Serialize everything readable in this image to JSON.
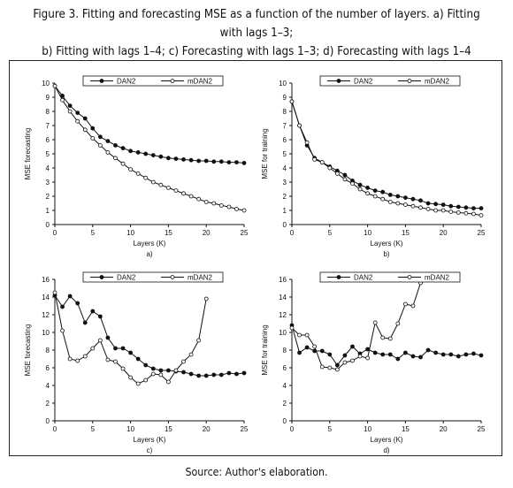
{
  "caption": {
    "line1": "Figure 3. Fitting and forecasting MSE as a function of the number of layers. a) Fitting with lags 1–3;",
    "line2": "b) Fitting with lags 1–4; c) Forecasting with lags 1–3; d) Forecasting with lags 1–4"
  },
  "source": "Source: Author's elaboration.",
  "chart_data": [
    {
      "type": "line",
      "panel_label": "a)",
      "xlabel": "Layers (K)",
      "ylabel": "MSE forecasting",
      "xlim": [
        0,
        25
      ],
      "ylim": [
        0,
        10
      ],
      "xticks": [
        0,
        5,
        10,
        15,
        20,
        25
      ],
      "yticks": [
        0,
        1,
        2,
        3,
        4,
        5,
        6,
        7,
        8,
        9,
        10
      ],
      "grid": false,
      "legend": "top",
      "x": [
        0,
        1,
        2,
        3,
        4,
        5,
        6,
        7,
        8,
        9,
        10,
        11,
        12,
        13,
        14,
        15,
        16,
        17,
        18,
        19,
        20,
        21,
        22,
        23,
        24,
        25
      ],
      "series": [
        {
          "name": "DAN2",
          "marker": "filled",
          "values": [
            9.8,
            9.1,
            8.4,
            7.9,
            7.5,
            6.8,
            6.2,
            5.9,
            5.6,
            5.4,
            5.2,
            5.1,
            5.0,
            4.9,
            4.8,
            4.7,
            4.65,
            4.6,
            4.55,
            4.5,
            4.5,
            4.45,
            4.45,
            4.4,
            4.4,
            4.35
          ]
        },
        {
          "name": "mDAN2",
          "marker": "open",
          "values": [
            9.8,
            8.8,
            8.0,
            7.3,
            6.7,
            6.1,
            5.6,
            5.1,
            4.7,
            4.3,
            3.9,
            3.6,
            3.3,
            3.0,
            2.8,
            2.6,
            2.4,
            2.2,
            2.0,
            1.8,
            1.6,
            1.5,
            1.35,
            1.25,
            1.1,
            1.0
          ]
        }
      ]
    },
    {
      "type": "line",
      "panel_label": "b)",
      "xlabel": "Layers (K)",
      "ylabel": "MSE for training",
      "xlim": [
        0,
        25
      ],
      "ylim": [
        0,
        10
      ],
      "xticks": [
        0,
        5,
        10,
        15,
        20,
        25
      ],
      "yticks": [
        0,
        1,
        2,
        3,
        4,
        5,
        6,
        7,
        8,
        9,
        10
      ],
      "grid": false,
      "legend": "top",
      "x": [
        0,
        1,
        2,
        3,
        4,
        5,
        6,
        7,
        8,
        9,
        10,
        11,
        12,
        13,
        14,
        15,
        16,
        17,
        18,
        19,
        20,
        21,
        22,
        23,
        24,
        25
      ],
      "series": [
        {
          "name": "DAN2",
          "marker": "filled",
          "values": [
            8.7,
            7.0,
            5.6,
            4.7,
            4.4,
            4.1,
            3.8,
            3.5,
            3.1,
            2.8,
            2.6,
            2.4,
            2.3,
            2.1,
            2.0,
            1.9,
            1.8,
            1.7,
            1.5,
            1.45,
            1.4,
            1.3,
            1.25,
            1.2,
            1.15,
            1.15
          ]
        },
        {
          "name": "mDAN2",
          "marker": "open",
          "values": [
            8.7,
            7.0,
            5.8,
            4.6,
            4.4,
            4.0,
            3.6,
            3.2,
            2.9,
            2.5,
            2.2,
            2.0,
            1.8,
            1.6,
            1.5,
            1.4,
            1.3,
            1.2,
            1.1,
            1.0,
            1.0,
            0.9,
            0.85,
            0.8,
            0.75,
            0.65
          ]
        }
      ]
    },
    {
      "type": "line",
      "panel_label": "c)",
      "xlabel": "Layers (K)",
      "ylabel": "MSE forecasting",
      "xlim": [
        0,
        25
      ],
      "ylim": [
        0,
        16
      ],
      "xticks": [
        0,
        5,
        10,
        15,
        20,
        25
      ],
      "yticks": [
        0,
        2,
        4,
        6,
        8,
        10,
        12,
        14,
        16
      ],
      "grid": false,
      "legend": "top",
      "x": [
        0,
        1,
        2,
        3,
        4,
        5,
        6,
        7,
        8,
        9,
        10,
        11,
        12,
        13,
        14,
        15,
        16,
        17,
        18,
        19,
        20,
        21,
        22,
        23,
        24,
        25
      ],
      "series": [
        {
          "name": "DAN2",
          "marker": "filled",
          "values": [
            14.2,
            12.9,
            14.1,
            13.3,
            11.1,
            12.4,
            11.8,
            9.4,
            8.2,
            8.2,
            7.7,
            7.0,
            6.3,
            5.9,
            5.7,
            5.7,
            5.6,
            5.5,
            5.3,
            5.1,
            5.1,
            5.2,
            5.2,
            5.4,
            5.3,
            5.4
          ]
        },
        {
          "name": "mDAN2",
          "marker": "open",
          "values": [
            14.5,
            10.2,
            7.0,
            6.8,
            7.3,
            8.2,
            9.1,
            6.9,
            6.7,
            5.9,
            4.9,
            4.2,
            4.6,
            5.3,
            5.2,
            4.4,
            5.7,
            6.7,
            7.5,
            9.1,
            13.8,
            null,
            null,
            null,
            null,
            null
          ]
        }
      ]
    },
    {
      "type": "line",
      "panel_label": "d)",
      "xlabel": "Layers (K)",
      "ylabel": "MSE for training",
      "xlim": [
        0,
        25
      ],
      "ylim": [
        0,
        16
      ],
      "xticks": [
        0,
        5,
        10,
        15,
        20,
        25
      ],
      "yticks": [
        0,
        2,
        4,
        6,
        8,
        10,
        12,
        14,
        16
      ],
      "grid": false,
      "legend": "top",
      "x": [
        0,
        1,
        2,
        3,
        4,
        5,
        6,
        7,
        8,
        9,
        10,
        11,
        12,
        13,
        14,
        15,
        16,
        17,
        18,
        19,
        20,
        21,
        22,
        23,
        24,
        25
      ],
      "series": [
        {
          "name": "DAN2",
          "marker": "filled",
          "values": [
            10.8,
            7.7,
            8.3,
            7.9,
            7.9,
            7.5,
            6.3,
            7.4,
            8.4,
            7.6,
            8.1,
            7.7,
            7.5,
            7.5,
            7.0,
            7.7,
            7.3,
            7.2,
            8.0,
            7.7,
            7.5,
            7.5,
            7.3,
            7.5,
            7.6,
            7.4
          ]
        },
        {
          "name": "mDAN2",
          "marker": "open",
          "values": [
            10.5,
            9.7,
            9.7,
            8.4,
            6.1,
            6.0,
            5.8,
            6.6,
            6.8,
            7.3,
            7.1,
            11.1,
            9.4,
            9.3,
            11.0,
            13.2,
            13.0,
            15.6,
            16.0,
            null,
            null,
            null,
            null,
            null,
            null,
            null
          ]
        }
      ]
    }
  ]
}
